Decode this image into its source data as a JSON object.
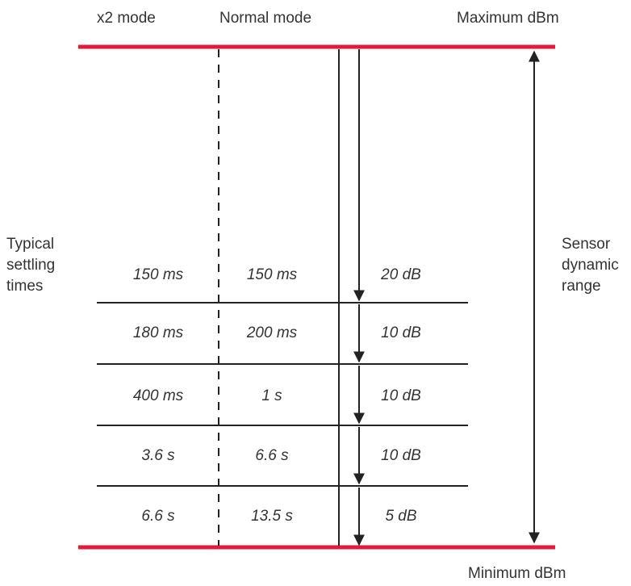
{
  "headers": {
    "x2_mode": "x2 mode",
    "normal_mode": "Normal mode",
    "max_dbm": "Maximum dBm",
    "min_dbm": "Minimum dBm"
  },
  "left_label": [
    "Typical",
    "settling",
    "times"
  ],
  "right_label": [
    "Sensor",
    "dynamic",
    "range"
  ],
  "rows": [
    {
      "x2": "150 ms",
      "normal": "150 ms",
      "range": "20 dB"
    },
    {
      "x2": "180 ms",
      "normal": "200 ms",
      "range": "10 dB"
    },
    {
      "x2": "400 ms",
      "normal": "1 s",
      "range": "10 dB"
    },
    {
      "x2": "3.6 s",
      "normal": "6.6 s",
      "range": "10 dB"
    },
    {
      "x2": "6.6 s",
      "normal": "13.5 s",
      "range": "5 dB"
    }
  ],
  "colors": {
    "limit_line": "#e21a3c",
    "line": "#222222",
    "text": "#333333"
  }
}
